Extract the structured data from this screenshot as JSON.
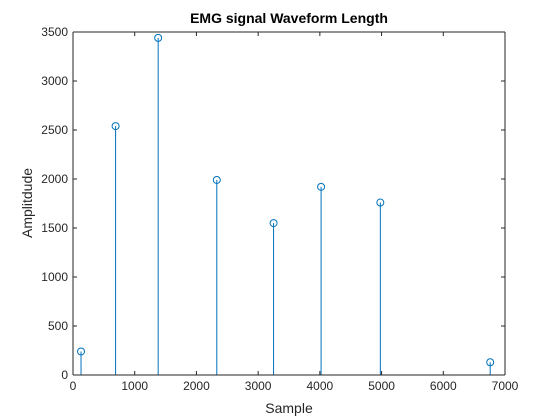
{
  "chart_data": {
    "type": "stem",
    "title": "EMG signal Waveform Length",
    "xlabel": "Sample",
    "ylabel": "Amplitdude",
    "xlim": [
      0,
      7000
    ],
    "ylim": [
      0,
      3500
    ],
    "xticks": [
      0,
      1000,
      2000,
      3000,
      4000,
      5000,
      6000,
      7000
    ],
    "yticks": [
      0,
      500,
      1000,
      1500,
      2000,
      2500,
      3000,
      3500
    ],
    "grid": false,
    "series": [
      {
        "color": "#0072BD",
        "marker": "circle",
        "x": [
          130,
          690,
          1380,
          2330,
          3250,
          4020,
          4980,
          6760
        ],
        "y": [
          240,
          2540,
          3440,
          1990,
          1550,
          1920,
          1760,
          130
        ]
      }
    ]
  }
}
